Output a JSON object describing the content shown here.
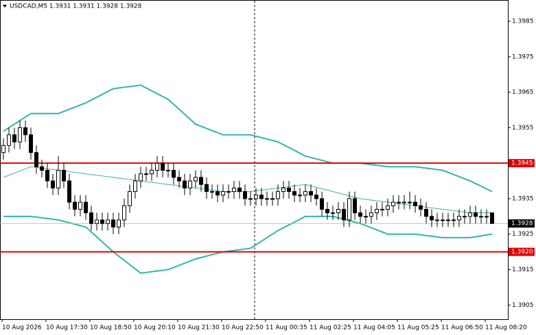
{
  "chart_data": {
    "type": "candlestick",
    "title": "USDCAD,M5  1.3931 1.3931 1.3928 1.3928",
    "candle_color": "#000000",
    "ylim": [
      1.3901,
      1.3991
    ],
    "yticks": [
      1.3985,
      1.3975,
      1.3965,
      1.3955,
      1.3935,
      1.3925,
      1.3915,
      1.3905
    ],
    "levels": [
      {
        "value": 1.3945,
        "label": "1.3945"
      },
      {
        "value": 1.392,
        "label": "1.3920"
      }
    ],
    "level_color": "#e00000",
    "current_price": 1.3928,
    "time_labels": [
      "10 Aug 2026",
      "10 Aug 17:30",
      "10 Aug 18:50",
      "10 Aug 20:10",
      "10 Aug 21:30",
      "10 Aug 22:50",
      "11 Aug 00:35",
      "11 Aug 02:25",
      "11 Aug 04:05",
      "11 Aug 05:25",
      "11 Aug 06:50",
      "11 Aug 08:20"
    ],
    "candles": [
      [
        1.3948,
        1.3952,
        1.3946,
        1.395
      ],
      [
        1.395,
        1.3955,
        1.3948,
        1.3953
      ],
      [
        1.3953,
        1.3955,
        1.3949,
        1.3951
      ],
      [
        1.3951,
        1.3957,
        1.3949,
        1.3955
      ],
      [
        1.3955,
        1.3957,
        1.3951,
        1.3953
      ],
      [
        1.3953,
        1.3955,
        1.3946,
        1.3948
      ],
      [
        1.3948,
        1.395,
        1.3942,
        1.3944
      ],
      [
        1.3944,
        1.3946,
        1.3941,
        1.3943
      ],
      [
        1.3943,
        1.3945,
        1.3938,
        1.394
      ],
      [
        1.394,
        1.3942,
        1.3936,
        1.3938
      ],
      [
        1.3938,
        1.3947,
        1.3936,
        1.3943
      ],
      [
        1.3943,
        1.3945,
        1.3938,
        1.394
      ],
      [
        1.394,
        1.3942,
        1.3932,
        1.3934
      ],
      [
        1.3934,
        1.3936,
        1.393,
        1.3932
      ],
      [
        1.3932,
        1.3936,
        1.393,
        1.3934
      ],
      [
        1.3934,
        1.3936,
        1.3929,
        1.3931
      ],
      [
        1.3931,
        1.3933,
        1.3926,
        1.3928
      ],
      [
        1.3928,
        1.3931,
        1.3926,
        1.3929
      ],
      [
        1.3929,
        1.3931,
        1.3926,
        1.3928
      ],
      [
        1.3928,
        1.3931,
        1.3926,
        1.3929
      ],
      [
        1.3929,
        1.3931,
        1.3925,
        1.3927
      ],
      [
        1.3927,
        1.3931,
        1.3925,
        1.3929
      ],
      [
        1.3929,
        1.3935,
        1.3927,
        1.3933
      ],
      [
        1.3933,
        1.3939,
        1.3931,
        1.3937
      ],
      [
        1.3937,
        1.3942,
        1.3935,
        1.394
      ],
      [
        1.394,
        1.3944,
        1.3938,
        1.3942
      ],
      [
        1.3942,
        1.3944,
        1.394,
        1.3942
      ],
      [
        1.3942,
        1.3945,
        1.394,
        1.3943
      ],
      [
        1.3943,
        1.3947,
        1.3941,
        1.3945
      ],
      [
        1.3945,
        1.3947,
        1.3941,
        1.3943
      ],
      [
        1.3943,
        1.3945,
        1.3941,
        1.3943
      ],
      [
        1.3943,
        1.3945,
        1.3939,
        1.3941
      ],
      [
        1.3941,
        1.3943,
        1.3938,
        1.394
      ],
      [
        1.394,
        1.3942,
        1.3936,
        1.3938
      ],
      [
        1.3938,
        1.3942,
        1.3936,
        1.394
      ],
      [
        1.394,
        1.3943,
        1.3938,
        1.3941
      ],
      [
        1.3941,
        1.3943,
        1.3937,
        1.3939
      ],
      [
        1.3939,
        1.3941,
        1.3935,
        1.3937
      ],
      [
        1.3937,
        1.3939,
        1.3935,
        1.3937
      ],
      [
        1.3937,
        1.3939,
        1.3934,
        1.3936
      ],
      [
        1.3936,
        1.3939,
        1.3934,
        1.3937
      ],
      [
        1.3937,
        1.3939,
        1.3935,
        1.3937
      ],
      [
        1.3937,
        1.394,
        1.3935,
        1.3938
      ],
      [
        1.3938,
        1.394,
        1.3935,
        1.3937
      ],
      [
        1.3937,
        1.3939,
        1.3933,
        1.3935
      ],
      [
        1.3935,
        1.3937,
        1.3933,
        1.3935
      ],
      [
        1.3935,
        1.3938,
        1.3933,
        1.3936
      ],
      [
        1.3936,
        1.3938,
        1.3933,
        1.3935
      ],
      [
        1.3935,
        1.3937,
        1.3933,
        1.3935
      ],
      [
        1.3935,
        1.3937,
        1.3933,
        1.3935
      ],
      [
        1.3935,
        1.3939,
        1.3933,
        1.3937
      ],
      [
        1.3937,
        1.394,
        1.3935,
        1.3938
      ],
      [
        1.3938,
        1.394,
        1.3935,
        1.3937
      ],
      [
        1.3937,
        1.3939,
        1.3934,
        1.3936
      ],
      [
        1.3936,
        1.3938,
        1.3934,
        1.3936
      ],
      [
        1.3936,
        1.3939,
        1.3934,
        1.3937
      ],
      [
        1.3937,
        1.3939,
        1.3934,
        1.3936
      ],
      [
        1.3936,
        1.3938,
        1.3933,
        1.3935
      ],
      [
        1.3935,
        1.3937,
        1.393,
        1.3932
      ],
      [
        1.3932,
        1.3934,
        1.3929,
        1.3931
      ],
      [
        1.3931,
        1.3933,
        1.3929,
        1.3931
      ],
      [
        1.3931,
        1.3934,
        1.3929,
        1.3932
      ],
      [
        1.3932,
        1.3934,
        1.3927,
        1.3929
      ],
      [
        1.3929,
        1.3937,
        1.3927,
        1.3935
      ],
      [
        1.3935,
        1.3937,
        1.3929,
        1.3931
      ],
      [
        1.3931,
        1.3933,
        1.3928,
        1.393
      ],
      [
        1.393,
        1.3932,
        1.3928,
        1.393
      ],
      [
        1.393,
        1.3933,
        1.3928,
        1.3931
      ],
      [
        1.3931,
        1.3934,
        1.3929,
        1.3932
      ],
      [
        1.3932,
        1.3934,
        1.393,
        1.3932
      ],
      [
        1.3932,
        1.3935,
        1.393,
        1.3933
      ],
      [
        1.3933,
        1.3936,
        1.3931,
        1.3934
      ],
      [
        1.3934,
        1.3936,
        1.3932,
        1.3934
      ],
      [
        1.3934,
        1.3936,
        1.3932,
        1.3934
      ],
      [
        1.3934,
        1.3937,
        1.3932,
        1.3934
      ],
      [
        1.3934,
        1.3936,
        1.3931,
        1.3933
      ],
      [
        1.3933,
        1.3935,
        1.393,
        1.3932
      ],
      [
        1.3932,
        1.3934,
        1.3928,
        1.393
      ],
      [
        1.393,
        1.3932,
        1.3927,
        1.3929
      ],
      [
        1.3929,
        1.3931,
        1.3927,
        1.3929
      ],
      [
        1.3929,
        1.3931,
        1.3927,
        1.3929
      ],
      [
        1.3929,
        1.3931,
        1.3927,
        1.3929
      ],
      [
        1.3929,
        1.3931,
        1.3927,
        1.3929
      ],
      [
        1.3929,
        1.3932,
        1.3927,
        1.393
      ],
      [
        1.393,
        1.3932,
        1.3928,
        1.393
      ],
      [
        1.393,
        1.3933,
        1.3928,
        1.3931
      ],
      [
        1.3931,
        1.3933,
        1.3928,
        1.393
      ],
      [
        1.393,
        1.3932,
        1.3928,
        1.393
      ],
      [
        1.393,
        1.3932,
        1.3928,
        1.393
      ],
      [
        1.3931,
        1.3931,
        1.3928,
        1.3928
      ]
    ],
    "bands": {
      "color": "#2fb5ad",
      "x": [
        0,
        5,
        10,
        15,
        20,
        25,
        30,
        35,
        40,
        45,
        50,
        55,
        60,
        65,
        70,
        75,
        80,
        85,
        89
      ],
      "upper": [
        1.3954,
        1.3959,
        1.3959,
        1.3962,
        1.3966,
        1.3967,
        1.3963,
        1.3956,
        1.3953,
        1.3953,
        1.3951,
        1.3947,
        1.3945,
        1.3945,
        1.3944,
        1.3944,
        1.3943,
        1.394,
        1.3937
      ],
      "middle": [
        1.3941,
        1.3944,
        1.3943,
        1.3942,
        1.3941,
        1.394,
        1.3939,
        1.3938,
        1.3937,
        1.3937,
        1.3938,
        1.3939,
        1.3937,
        1.3935,
        1.3934,
        1.3933,
        1.3932,
        1.3931,
        1.3931
      ],
      "lower": [
        1.393,
        1.393,
        1.3929,
        1.3927,
        1.392,
        1.3914,
        1.3915,
        1.3918,
        1.392,
        1.3921,
        1.3926,
        1.393,
        1.393,
        1.3928,
        1.3925,
        1.3925,
        1.3924,
        1.3924,
        1.3925
      ]
    }
  }
}
